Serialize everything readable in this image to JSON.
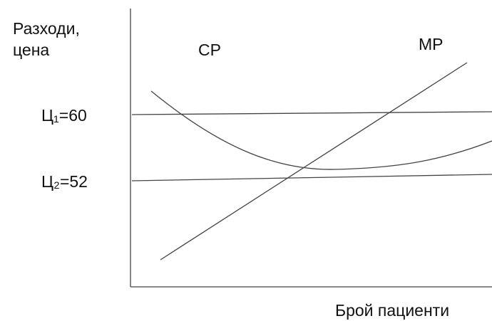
{
  "y_axis_label": [
    "Разходи,",
    "цена"
  ],
  "x_axis_label": "Брой пациенти",
  "curves": [
    {
      "label": "СР"
    },
    {
      "label": "МР"
    }
  ],
  "price_lines": [
    {
      "label": "Ц₁=60"
    },
    {
      "label": "Ц₂=52"
    }
  ]
}
